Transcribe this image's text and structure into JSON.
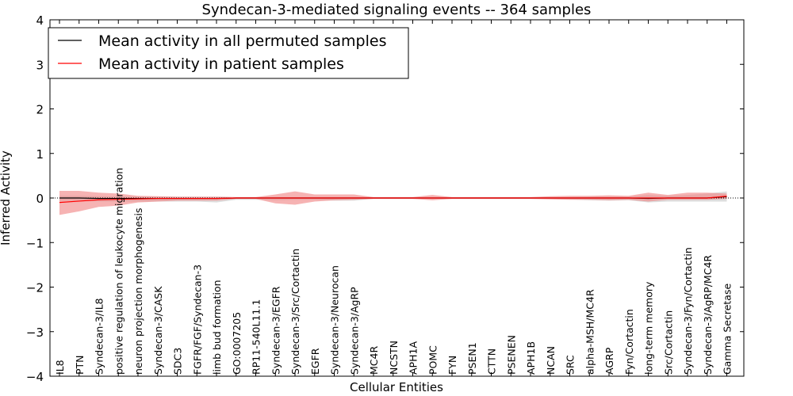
{
  "chart_data": {
    "type": "line",
    "title": "Syndecan-3-mediated signaling events -- 364 samples",
    "xlabel": "Cellular Entities",
    "ylabel": "Inferred Activity",
    "ylim": [
      -4,
      4
    ],
    "yticks": [
      -4,
      -3,
      -2,
      -1,
      0,
      1,
      2,
      3,
      4
    ],
    "ytick_labels": [
      "−4",
      "−3",
      "−2",
      "−1",
      "0",
      "1",
      "2",
      "3",
      "4"
    ],
    "categories": [
      "IL8",
      "PTN",
      "Syndecan-3/IL8",
      "positive regulation of leukocyte migration",
      "neuron projection morphogenesis",
      "Syndecan-3/CASK",
      "SDC3",
      "FGFR/FGF/Syndecan-3",
      "limb bud formation",
      "GO:0007205",
      "RP11-540L11.1",
      "Syndecan-3/EGFR",
      "Syndecan-3/Src/Cortactin",
      "EGFR",
      "Syndecan-3/Neurocan",
      "Syndecan-3/AgRP",
      "MC4R",
      "NCSTN",
      "APH1A",
      "POMC",
      "FYN",
      "PSEN1",
      "CTTN",
      "PSENEN",
      "APH1B",
      "NCAN",
      "SRC",
      "alpha-MSH/MC4R",
      "AGRP",
      "Fyn/Cortactin",
      "long-term memory",
      "Src/Cortactin",
      "Syndecan-3/Fyn/Cortactin",
      "Syndecan-3/AgRP/MC4R",
      "Gamma Secretase"
    ],
    "legend_position": "top-left",
    "series": [
      {
        "name": "Mean activity in all permuted samples",
        "color": "#000000",
        "values": [
          0.0,
          0.0,
          -0.01,
          -0.01,
          -0.01,
          -0.01,
          -0.01,
          -0.01,
          -0.01,
          0.0,
          0.0,
          0.0,
          0.0,
          0.0,
          0.0,
          0.0,
          0.0,
          0.0,
          0.0,
          0.0,
          0.0,
          0.0,
          0.0,
          0.0,
          0.0,
          0.0,
          0.0,
          0.0,
          0.0,
          0.0,
          -0.01,
          0.0,
          0.0,
          0.0,
          0.03
        ],
        "band_upper": [
          0.05,
          0.05,
          0.04,
          0.03,
          0.03,
          0.03,
          0.03,
          0.03,
          0.03,
          0.02,
          0.02,
          0.02,
          0.02,
          0.02,
          0.02,
          0.02,
          0.02,
          0.02,
          0.02,
          0.02,
          0.02,
          0.02,
          0.02,
          0.02,
          0.02,
          0.02,
          0.02,
          0.03,
          0.03,
          0.03,
          0.07,
          0.05,
          0.07,
          0.1,
          0.15
        ],
        "band_lower": [
          -0.06,
          -0.06,
          -0.08,
          -0.08,
          -0.08,
          -0.08,
          -0.08,
          -0.08,
          -0.1,
          -0.04,
          -0.04,
          -0.05,
          -0.04,
          -0.04,
          -0.06,
          -0.06,
          -0.02,
          -0.02,
          -0.02,
          -0.02,
          -0.02,
          -0.02,
          -0.02,
          -0.02,
          -0.02,
          -0.02,
          -0.03,
          -0.05,
          -0.06,
          -0.05,
          -0.1,
          -0.08,
          -0.08,
          -0.08,
          -0.08
        ],
        "band_color": "#d3d3d3"
      },
      {
        "name": "Mean activity in patient samples",
        "color": "#ff0000",
        "values": [
          -0.1,
          -0.07,
          -0.04,
          -0.03,
          -0.02,
          -0.01,
          -0.01,
          -0.01,
          -0.01,
          0.0,
          0.0,
          0.0,
          0.0,
          0.0,
          0.0,
          0.0,
          0.0,
          0.0,
          0.0,
          0.0,
          0.0,
          0.0,
          0.0,
          0.0,
          0.0,
          0.0,
          0.0,
          0.0,
          0.0,
          0.0,
          0.0,
          0.0,
          0.0,
          0.0,
          0.04
        ],
        "band_upper": [
          0.16,
          0.16,
          0.12,
          0.1,
          0.05,
          0.04,
          0.03,
          0.03,
          0.03,
          0.02,
          0.02,
          0.08,
          0.15,
          0.08,
          0.08,
          0.08,
          0.02,
          0.02,
          0.02,
          0.07,
          0.02,
          0.02,
          0.02,
          0.02,
          0.02,
          0.04,
          0.05,
          0.05,
          0.06,
          0.05,
          0.12,
          0.07,
          0.12,
          0.12,
          0.1
        ],
        "band_lower": [
          -0.38,
          -0.3,
          -0.2,
          -0.17,
          -0.1,
          -0.08,
          -0.06,
          -0.06,
          -0.06,
          -0.02,
          -0.02,
          -0.12,
          -0.15,
          -0.08,
          -0.05,
          -0.04,
          -0.02,
          -0.02,
          -0.02,
          -0.05,
          -0.02,
          -0.02,
          -0.02,
          -0.02,
          -0.02,
          -0.03,
          -0.04,
          -0.04,
          -0.05,
          -0.04,
          -0.08,
          -0.04,
          -0.04,
          -0.04,
          -0.02
        ],
        "band_color": "#f08080"
      }
    ]
  }
}
